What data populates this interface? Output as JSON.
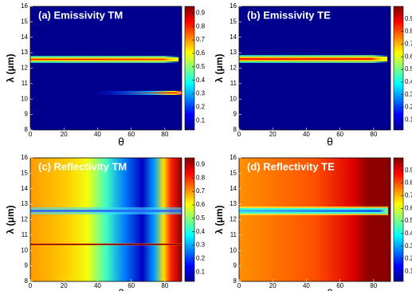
{
  "chart_data": [
    {
      "type": "heatmap",
      "title": "(a) Emissivity TM",
      "xlabel": "θ",
      "ylabel": "λ (μm)",
      "xlim": [
        0,
        90
      ],
      "xticks": [
        0,
        20,
        40,
        60,
        80
      ],
      "ylim": [
        8,
        16
      ],
      "yticks": [
        8,
        9,
        10,
        11,
        12,
        13,
        14,
        15,
        16
      ],
      "clim": [
        0.03,
        0.95
      ],
      "cticks": [
        0.1,
        0.2,
        0.3,
        0.4,
        0.5,
        0.6,
        0.7,
        0.8,
        0.9
      ],
      "colormap": "jet"
    },
    {
      "type": "heatmap",
      "title": "(b) Emissivity TE",
      "xlabel": "θ",
      "ylabel": "λ (μm)",
      "xlim": [
        0,
        90
      ],
      "xticks": [
        0,
        20,
        40,
        60,
        80
      ],
      "ylim": [
        8,
        16
      ],
      "yticks": [
        8,
        9,
        10,
        11,
        12,
        13,
        14,
        15,
        16
      ],
      "clim": [
        0.02,
        1.0
      ],
      "cticks": [
        0.1,
        0.2,
        0.3,
        0.4,
        0.5,
        0.6,
        0.7,
        0.8,
        0.9
      ],
      "colormap": "jet"
    },
    {
      "type": "heatmap",
      "title": "(c) Reflectivity TM",
      "xlabel": "θ",
      "ylabel": "λ (μm)",
      "xlim": [
        0,
        90
      ],
      "xticks": [
        0,
        20,
        40,
        60,
        80
      ],
      "ylim": [
        8,
        16
      ],
      "yticks": [
        8,
        9,
        10,
        11,
        12,
        13,
        14,
        15,
        16
      ],
      "clim": [
        0.03,
        0.95
      ],
      "cticks": [
        0.1,
        0.2,
        0.3,
        0.4,
        0.5,
        0.6,
        0.7,
        0.8,
        0.9
      ],
      "colormap": "jet"
    },
    {
      "type": "heatmap",
      "title": "(d) Reflectivity TE",
      "xlabel": "θ",
      "ylabel": "λ (μm)",
      "xlim": [
        0,
        90
      ],
      "xticks": [
        0,
        20,
        40,
        60,
        80
      ],
      "ylim": [
        8,
        16
      ],
      "yticks": [
        8,
        9,
        10,
        11,
        12,
        13,
        14,
        15,
        16
      ],
      "clim": [
        0.02,
        1.0
      ],
      "cticks": [
        0.1,
        0.2,
        0.3,
        0.4,
        0.5,
        0.6,
        0.7,
        0.8,
        0.9
      ],
      "colormap": "jet"
    }
  ]
}
